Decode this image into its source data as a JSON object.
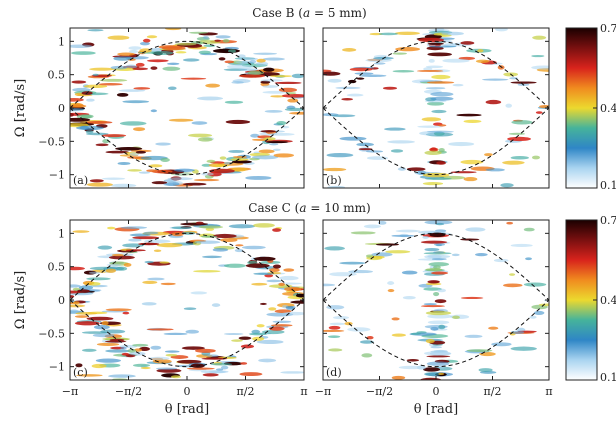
{
  "chart_data": {
    "type": "heatmap",
    "rows": [
      {
        "title": "Case B (a = 5 mm)",
        "title_prefix": "Case B (",
        "title_var": "a",
        "title_suffix": " = 5 mm)"
      },
      {
        "title": "Case C (a = 10 mm)",
        "title_prefix": "Case C (",
        "title_var": "a",
        "title_suffix": " = 10 mm)"
      }
    ],
    "panels": [
      {
        "label": "(a)",
        "row": 0,
        "col": 0
      },
      {
        "label": "(b)",
        "row": 0,
        "col": 1
      },
      {
        "label": "(c)",
        "row": 1,
        "col": 0
      },
      {
        "label": "(d)",
        "row": 1,
        "col": 1
      }
    ],
    "xlabel": "θ [rad]",
    "ylabel": "Ω [rad/s]",
    "xlim": [
      -3.1416,
      3.1416
    ],
    "ylim": [
      -1.2,
      1.2
    ],
    "xticks": [
      {
        "value": -3.1416,
        "label": "−π"
      },
      {
        "value": -1.5708,
        "label": "−π/2"
      },
      {
        "value": 0,
        "label": "0"
      },
      {
        "value": 1.5708,
        "label": "π/2"
      },
      {
        "value": 3.1416,
        "label": "π"
      }
    ],
    "yticks": [
      {
        "value": 1,
        "label": "1"
      },
      {
        "value": 0.5,
        "label": "0.5"
      },
      {
        "value": 0,
        "label": "0"
      },
      {
        "value": -0.5,
        "label": "−0.5"
      },
      {
        "value": -1,
        "label": "−1"
      }
    ],
    "separatrix": {
      "style": "dashed",
      "amplitude": 1.0,
      "color": "#111111"
    },
    "colorbar": {
      "min": 0.1,
      "max": 0.7,
      "ticks": [
        {
          "value": 0.7,
          "label": "0.7"
        },
        {
          "value": 0.4,
          "label": "0.4"
        },
        {
          "value": 0.1,
          "label": "0.1"
        }
      ],
      "colormap": [
        "#ffffff",
        "#a9d4f0",
        "#2f86c6",
        "#46b39b",
        "#ecd92e",
        "#f08b1f",
        "#d8231c",
        "#7a1010",
        "#1a0000"
      ]
    }
  }
}
